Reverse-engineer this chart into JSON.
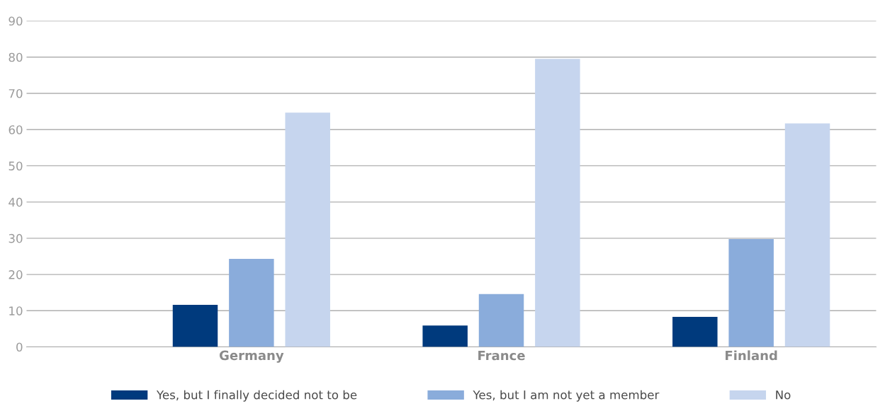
{
  "chart_data": {
    "type": "bar",
    "categories": [
      "Germany",
      "France",
      "Finland"
    ],
    "series": [
      {
        "name": "Yes, but I finally decided not to be",
        "color": "#003a7d",
        "values": [
          11.6,
          5.9,
          8.3
        ]
      },
      {
        "name": "Yes, but I am not yet a member",
        "color": "#8aacdb",
        "values": [
          24.3,
          14.6,
          29.8
        ]
      },
      {
        "name": "No",
        "color": "#c6d5ee",
        "values": [
          64.7,
          79.5,
          61.7
        ]
      }
    ],
    "ylim": [
      0,
      90
    ],
    "yticks": [
      0,
      10,
      20,
      30,
      40,
      50,
      60,
      70,
      80,
      90
    ],
    "grid": "y",
    "legend": "bottom"
  }
}
